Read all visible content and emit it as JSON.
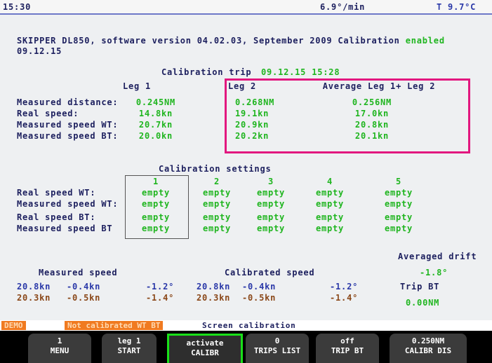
{
  "header": {
    "time": "15:30",
    "rate": "6.9°/min",
    "temp": "T  9.7°C"
  },
  "info": {
    "line1": "SKIPPER DL850, software version 04.02.03, September 2009 Calibration",
    "status": "enabled",
    "date": "09.12.15"
  },
  "trip": {
    "title": "Calibration trip",
    "datetime": "09.12.15 15:28",
    "columns": [
      "Leg 1",
      "Leg 2",
      "Average Leg 1+ Leg 2"
    ],
    "rows": [
      {
        "label": "Measured distance:",
        "values": [
          "0.245NM",
          "0.268NM",
          "0.256NM"
        ]
      },
      {
        "label": "Real speed:",
        "values": [
          "14.8kn",
          "19.1kn",
          "17.0kn"
        ]
      },
      {
        "label": "Measured speed WT:",
        "values": [
          "20.7kn",
          "20.9kn",
          "20.8kn"
        ]
      },
      {
        "label": "Measured speed BT:",
        "values": [
          "20.0kn",
          "20.2kn",
          "20.1kn"
        ]
      }
    ]
  },
  "settings": {
    "title": "Calibration settings",
    "columns": [
      "1",
      "2",
      "3",
      "4",
      "5"
    ],
    "rows": [
      {
        "label": "Real speed WT:",
        "values": [
          "empty",
          "empty",
          "empty",
          "empty",
          "empty"
        ]
      },
      {
        "label": "Measured speed WT:",
        "values": [
          "empty",
          "empty",
          "empty",
          "empty",
          "empty"
        ]
      },
      {
        "label": "Real speed BT:",
        "values": [
          "empty",
          "empty",
          "empty",
          "empty",
          "empty"
        ]
      },
      {
        "label": "Measured speed BT",
        "values": [
          "empty",
          "empty",
          "empty",
          "empty",
          "empty"
        ]
      }
    ]
  },
  "drift": {
    "measured_title": "Measured speed",
    "calibrated_title": "Calibrated speed",
    "averaged_title": "Averaged drift",
    "averaged_value": "-1.8°",
    "trip_bt_title": "Trip BT",
    "trip_bt_value": "0.00NM",
    "rows": [
      [
        "20.8kn",
        "-0.4kn",
        "-1.2°",
        "20.8kn",
        "-0.4kn",
        "-1.2°"
      ],
      [
        "20.3kn",
        "-0.5kn",
        "-1.4°",
        "20.3kn",
        "-0.5kn",
        "-1.4°"
      ]
    ]
  },
  "status_bar": {
    "mode": "DEMO",
    "warning": "Not calibrated WT BT",
    "screen": "Screen  calibration"
  },
  "buttons": [
    {
      "line1": "1",
      "line2": "MENU"
    },
    {
      "line1": "leg 1",
      "line2": "START"
    },
    {
      "line1": "activate",
      "line2": "CALIBR"
    },
    {
      "line1": "0",
      "line2": "TRIPS LIST"
    },
    {
      "line1": "off",
      "line2": "TRIP BT"
    },
    {
      "line1": "0.250NM",
      "line2": "CALIBR DIS"
    }
  ]
}
